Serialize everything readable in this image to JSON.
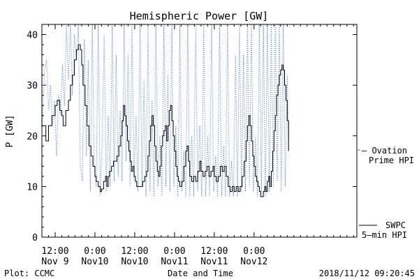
{
  "chart_data": {
    "type": "line",
    "title": "Hemispheric Power [GW]",
    "xlabel": "Date and Time",
    "ylabel": "P [GW]",
    "ylim": [
      0,
      42
    ],
    "xlim": [
      -2,
      45.5
    ],
    "x_units": "hours since 2018-11-09 00:00 UT",
    "y_ticks": [
      0,
      10,
      20,
      30,
      40
    ],
    "x_ticks": [
      {
        "x": 0,
        "line1": "12:00",
        "line2": "Nov 9"
      },
      {
        "x": 6,
        "line1": "0:00",
        "line2": "Nov10"
      },
      {
        "x": 12,
        "line1": "12:00",
        "line2": "Nov10"
      },
      {
        "x": 18,
        "line1": "0:00",
        "line2": "Nov11"
      },
      {
        "x": 24,
        "line1": "12:00",
        "line2": "Nov11"
      },
      {
        "x": 30,
        "line1": "0:00",
        "line2": "Nov12"
      }
    ],
    "grid": false,
    "series": [
      {
        "name": "SWPC 5-min HPI",
        "color": "#000000",
        "style": "step",
        "points": [
          [
            -2,
            22
          ],
          [
            -1.6,
            22
          ],
          [
            -1.4,
            19
          ],
          [
            -1.0,
            22
          ],
          [
            -0.5,
            24
          ],
          [
            0,
            26
          ],
          [
            0.3,
            27
          ],
          [
            0.7,
            25
          ],
          [
            1.0,
            24
          ],
          [
            1.2,
            22
          ],
          [
            1.6,
            25
          ],
          [
            2.0,
            27
          ],
          [
            2.3,
            30
          ],
          [
            2.6,
            32
          ],
          [
            2.9,
            35
          ],
          [
            3.2,
            37
          ],
          [
            3.5,
            38
          ],
          [
            3.8,
            37
          ],
          [
            4.0,
            34
          ],
          [
            4.2,
            30
          ],
          [
            4.5,
            26
          ],
          [
            4.8,
            22
          ],
          [
            5.1,
            18
          ],
          [
            5.4,
            16
          ],
          [
            5.7,
            14
          ],
          [
            6.0,
            12
          ],
          [
            6.2,
            11
          ],
          [
            6.5,
            10
          ],
          [
            6.8,
            9
          ],
          [
            7.0,
            9.5
          ],
          [
            7.3,
            11
          ],
          [
            7.6,
            12
          ],
          [
            7.8,
            10
          ],
          [
            8.0,
            12
          ],
          [
            8.2,
            13
          ],
          [
            8.5,
            14
          ],
          [
            8.8,
            15
          ],
          [
            9.0,
            15
          ],
          [
            9.3,
            16
          ],
          [
            9.6,
            18
          ],
          [
            9.9,
            20
          ],
          [
            10.1,
            23
          ],
          [
            10.3,
            26
          ],
          [
            10.5,
            24
          ],
          [
            10.7,
            22
          ],
          [
            10.9,
            19
          ],
          [
            11.1,
            17
          ],
          [
            11.3,
            15
          ],
          [
            11.5,
            13
          ],
          [
            11.7,
            14
          ],
          [
            11.9,
            12
          ],
          [
            12.1,
            11
          ],
          [
            12.3,
            10
          ],
          [
            12.6,
            10
          ],
          [
            12.9,
            10
          ],
          [
            13.2,
            11
          ],
          [
            13.5,
            12
          ],
          [
            13.8,
            13
          ],
          [
            14.0,
            16
          ],
          [
            14.2,
            19
          ],
          [
            14.4,
            22
          ],
          [
            14.6,
            24
          ],
          [
            14.8,
            22
          ],
          [
            15.0,
            18
          ],
          [
            15.2,
            15
          ],
          [
            15.4,
            13
          ],
          [
            15.6,
            12
          ],
          [
            15.8,
            14
          ],
          [
            16.0,
            18
          ],
          [
            16.2,
            20
          ],
          [
            16.4,
            21
          ],
          [
            16.6,
            22
          ],
          [
            16.8,
            19
          ],
          [
            17.0,
            22
          ],
          [
            17.2,
            25
          ],
          [
            17.4,
            26
          ],
          [
            17.6,
            23
          ],
          [
            17.8,
            20
          ],
          [
            18.0,
            17
          ],
          [
            18.2,
            14
          ],
          [
            18.4,
            12
          ],
          [
            18.6,
            11
          ],
          [
            18.8,
            10
          ],
          [
            19.1,
            11
          ],
          [
            19.4,
            14
          ],
          [
            19.7,
            17
          ],
          [
            19.9,
            18
          ],
          [
            20.1,
            15
          ],
          [
            20.3,
            12
          ],
          [
            20.6,
            11
          ],
          [
            20.9,
            12
          ],
          [
            21.2,
            11
          ],
          [
            21.5,
            13
          ],
          [
            21.8,
            15
          ],
          [
            22.0,
            13
          ],
          [
            22.3,
            12
          ],
          [
            22.6,
            13
          ],
          [
            22.9,
            14
          ],
          [
            23.2,
            12
          ],
          [
            23.5,
            13
          ],
          [
            23.8,
            14
          ],
          [
            24.0,
            12
          ],
          [
            24.3,
            11
          ],
          [
            24.6,
            12
          ],
          [
            24.9,
            14
          ],
          [
            25.2,
            13
          ],
          [
            25.5,
            14
          ],
          [
            25.8,
            12
          ],
          [
            26.1,
            10
          ],
          [
            26.4,
            9
          ],
          [
            26.7,
            10
          ],
          [
            27.0,
            9
          ],
          [
            27.3,
            10
          ],
          [
            27.6,
            9
          ],
          [
            27.9,
            10
          ],
          [
            28.2,
            12
          ],
          [
            28.5,
            15
          ],
          [
            28.8,
            19
          ],
          [
            29.0,
            22
          ],
          [
            29.2,
            24
          ],
          [
            29.4,
            22
          ],
          [
            29.6,
            19
          ],
          [
            29.8,
            16
          ],
          [
            30.0,
            14
          ],
          [
            30.2,
            12
          ],
          [
            30.4,
            11
          ],
          [
            30.6,
            10
          ],
          [
            30.8,
            9
          ],
          [
            31.0,
            8
          ],
          [
            31.2,
            8
          ],
          [
            31.4,
            9
          ],
          [
            31.6,
            10
          ],
          [
            31.8,
            9
          ],
          [
            32.0,
            11
          ],
          [
            32.2,
            12
          ],
          [
            32.4,
            10
          ],
          [
            32.6,
            13
          ],
          [
            32.8,
            17
          ],
          [
            33.0,
            21
          ],
          [
            33.2,
            24
          ],
          [
            33.4,
            28
          ],
          [
            33.6,
            30
          ],
          [
            33.8,
            32
          ],
          [
            34.0,
            33
          ],
          [
            34.2,
            34
          ],
          [
            34.4,
            33
          ],
          [
            34.6,
            30
          ],
          [
            34.8,
            27
          ],
          [
            35.0,
            23
          ],
          [
            35.2,
            17
          ]
        ]
      },
      {
        "name": "Ovation Prime HPI",
        "color": "#3c78c8",
        "style": "dotted",
        "points": [
          [
            -2,
            20
          ],
          [
            -1.6,
            33
          ],
          [
            -1.3,
            35
          ],
          [
            -1.0,
            25
          ],
          [
            -0.7,
            30
          ],
          [
            -0.4,
            22
          ],
          [
            -0.1,
            27
          ],
          [
            0.2,
            16
          ],
          [
            0.5,
            28
          ],
          [
            0.8,
            24
          ],
          [
            1.1,
            34
          ],
          [
            1.4,
            26
          ],
          [
            1.7,
            42
          ],
          [
            2.0,
            31
          ],
          [
            2.3,
            42
          ],
          [
            2.6,
            28
          ],
          [
            2.9,
            40
          ],
          [
            3.2,
            35
          ],
          [
            3.5,
            42
          ],
          [
            3.8,
            14
          ],
          [
            4.1,
            11
          ],
          [
            4.4,
            39
          ],
          [
            4.7,
            16
          ],
          [
            5.0,
            35
          ],
          [
            5.3,
            9
          ],
          [
            5.6,
            42
          ],
          [
            5.9,
            14
          ],
          [
            6.2,
            10
          ],
          [
            6.5,
            42
          ],
          [
            6.8,
            8
          ],
          [
            7.1,
            19
          ],
          [
            7.4,
            40
          ],
          [
            7.7,
            9
          ],
          [
            8.0,
            24
          ],
          [
            8.3,
            10
          ],
          [
            8.6,
            42
          ],
          [
            8.9,
            11
          ],
          [
            9.2,
            36
          ],
          [
            9.5,
            12
          ],
          [
            9.8,
            25
          ],
          [
            10.1,
            11
          ],
          [
            10.4,
            42
          ],
          [
            10.7,
            15
          ],
          [
            11.0,
            36
          ],
          [
            11.3,
            10
          ],
          [
            11.6,
            42
          ],
          [
            11.9,
            11
          ],
          [
            12.2,
            24
          ],
          [
            12.5,
            9
          ],
          [
            12.8,
            42
          ],
          [
            13.1,
            10
          ],
          [
            13.4,
            31
          ],
          [
            13.7,
            8
          ],
          [
            14.0,
            42
          ],
          [
            14.3,
            9
          ],
          [
            14.6,
            27
          ],
          [
            14.9,
            8
          ],
          [
            15.2,
            42
          ],
          [
            15.5,
            10
          ],
          [
            15.8,
            20
          ],
          [
            16.1,
            8
          ],
          [
            16.4,
            42
          ],
          [
            16.7,
            10
          ],
          [
            17.0,
            32
          ],
          [
            17.3,
            9
          ],
          [
            17.6,
            42
          ],
          [
            17.9,
            10
          ],
          [
            18.2,
            22
          ],
          [
            18.5,
            8
          ],
          [
            18.8,
            42
          ],
          [
            19.1,
            9
          ],
          [
            19.4,
            17
          ],
          [
            19.7,
            8
          ],
          [
            20.0,
            42
          ],
          [
            20.3,
            8
          ],
          [
            20.6,
            20
          ],
          [
            20.9,
            8
          ],
          [
            21.2,
            42
          ],
          [
            21.5,
            9
          ],
          [
            21.8,
            22
          ],
          [
            22.1,
            8
          ],
          [
            22.4,
            42
          ],
          [
            22.7,
            8
          ],
          [
            23.0,
            20
          ],
          [
            23.3,
            8
          ],
          [
            23.6,
            42
          ],
          [
            23.9,
            9
          ],
          [
            24.2,
            16
          ],
          [
            24.5,
            8
          ],
          [
            24.8,
            42
          ],
          [
            25.1,
            8
          ],
          [
            25.4,
            18
          ],
          [
            25.7,
            8
          ],
          [
            26.0,
            42
          ],
          [
            26.3,
            8
          ],
          [
            26.6,
            15
          ],
          [
            26.9,
            8
          ],
          [
            27.2,
            36
          ],
          [
            27.5,
            8
          ],
          [
            27.8,
            42
          ],
          [
            28.1,
            9
          ],
          [
            28.4,
            36
          ],
          [
            28.7,
            9
          ],
          [
            29.0,
            42
          ],
          [
            29.3,
            10
          ],
          [
            29.6,
            42
          ],
          [
            29.9,
            9
          ],
          [
            30.2,
            20
          ],
          [
            30.5,
            8
          ],
          [
            30.8,
            42
          ],
          [
            31.1,
            9
          ],
          [
            31.4,
            42
          ],
          [
            31.7,
            8
          ],
          [
            32.0,
            42
          ],
          [
            32.3,
            9
          ],
          [
            32.6,
            42
          ],
          [
            32.9,
            10
          ],
          [
            33.2,
            42
          ],
          [
            33.5,
            11
          ],
          [
            33.8,
            42
          ],
          [
            34.1,
            9
          ],
          [
            34.4,
            42
          ],
          [
            34.7,
            10
          ],
          [
            35.0,
            32
          ],
          [
            35.2,
            17
          ]
        ]
      }
    ],
    "legend": [
      {
        "lines": [
          "– Ovation",
          "Prime HPI"
        ],
        "color": "#3c78c8"
      },
      {
        "lines": [
          "SWPC",
          "5–min HPI"
        ],
        "color": "#000000"
      }
    ],
    "footer": {
      "left": "Plot: CCMC",
      "right": "2018/11/12 09:20:45"
    }
  }
}
